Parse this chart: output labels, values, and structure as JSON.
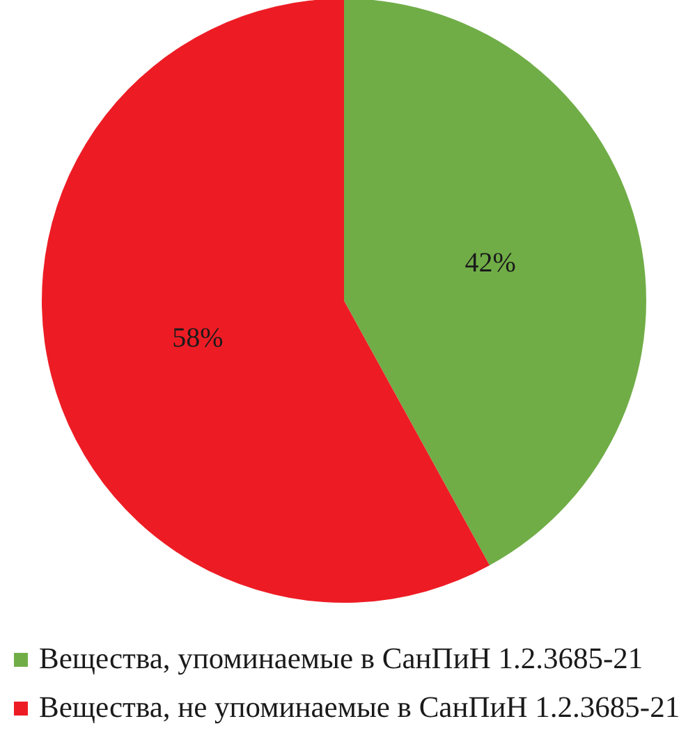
{
  "chart_data": {
    "type": "pie",
    "categories": [
      "Вещества, упоминаемые в СанПиН 1.2.3685-21",
      "Вещества, не упоминаемые в СанПиН 1.2.3685-21"
    ],
    "values": [
      42,
      58
    ],
    "colors": [
      "#70ad47",
      "#ed1c24"
    ],
    "value_labels": [
      "42%",
      "58%"
    ],
    "legend": "bottom"
  }
}
